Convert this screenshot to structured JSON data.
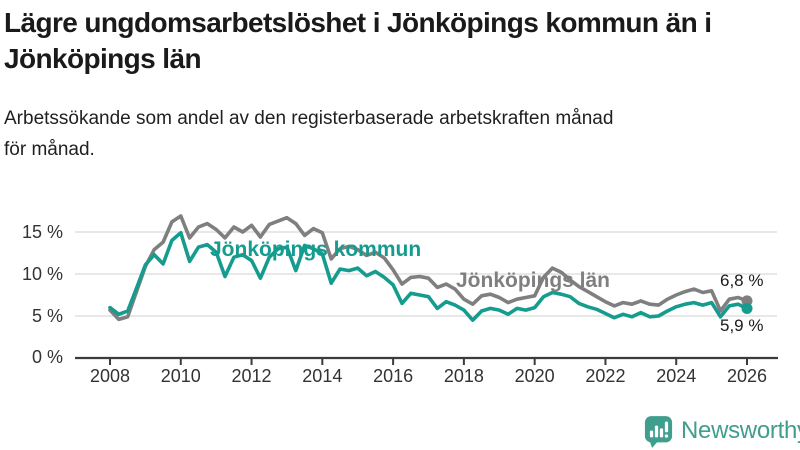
{
  "header": {
    "title_lines": [
      "Lägre ungdomsarbetslöshet i Jönköpings kommun än i",
      "Jönköpings län"
    ],
    "subtitle_lines": [
      "Arbetssökande som andel av den registerbaserade arbetskraften månad",
      "för månad."
    ]
  },
  "colors": {
    "kommun_teal": "#169c8f",
    "lan_gray": "#7f7f7f",
    "grid": "#d9d9d9",
    "axis": "#3c3c3c",
    "text": "#1a1a1a",
    "brand_teal": "#3f9e8d"
  },
  "chart_data": {
    "type": "line",
    "title": "Lägre ungdomsarbetslöshet i Jönköpings kommun än i Jönköpings län",
    "subtitle": "Arbetssökande som andel av den registerbaserade arbetskraften månad för månad.",
    "xlabel": "",
    "ylabel": "",
    "grid": "horizontal",
    "xlim": [
      2008,
      2026
    ],
    "ylim": [
      0,
      18
    ],
    "y_grid_values": [
      5,
      10,
      15
    ],
    "y_tick_labels": [
      "15 %",
      "10 %",
      "5 %",
      "0 %"
    ],
    "x_ticks": [
      2008,
      2010,
      2012,
      2014,
      2016,
      2018,
      2020,
      2022,
      2024,
      2026
    ],
    "x_tick_labels": [
      "2008",
      "2010",
      "2012",
      "2014",
      "2016",
      "2018",
      "2020",
      "2022",
      "2024",
      "2026"
    ],
    "x": [
      2008.0,
      2008.25,
      2008.5,
      2008.75,
      2009.0,
      2009.25,
      2009.5,
      2009.75,
      2010.0,
      2010.25,
      2010.5,
      2010.75,
      2011.0,
      2011.25,
      2011.5,
      2011.75,
      2012.0,
      2012.25,
      2012.5,
      2012.75,
      2013.0,
      2013.25,
      2013.5,
      2013.75,
      2014.0,
      2014.25,
      2014.5,
      2014.75,
      2015.0,
      2015.25,
      2015.5,
      2015.75,
      2016.0,
      2016.25,
      2016.5,
      2016.75,
      2017.0,
      2017.25,
      2017.5,
      2017.75,
      2018.0,
      2018.25,
      2018.5,
      2018.75,
      2019.0,
      2019.25,
      2019.5,
      2019.75,
      2020.0,
      2020.25,
      2020.5,
      2020.75,
      2021.0,
      2021.25,
      2021.5,
      2021.75,
      2022.0,
      2022.25,
      2022.5,
      2022.75,
      2023.0,
      2023.25,
      2023.5,
      2023.75,
      2024.0,
      2024.25,
      2024.5,
      2024.75,
      2025.0,
      2025.25,
      2025.5,
      2025.75,
      2026.0
    ],
    "series": [
      {
        "name": "Jönköpings län",
        "color": "#7f7f7f",
        "end_label": "6,8 %",
        "values": [
          5.7,
          4.6,
          4.9,
          7.9,
          10.9,
          12.9,
          13.8,
          16.2,
          16.9,
          14.3,
          15.6,
          16.0,
          15.3,
          14.3,
          15.6,
          15.0,
          15.8,
          14.4,
          15.9,
          16.3,
          16.7,
          16.0,
          14.6,
          15.4,
          14.9,
          11.8,
          13.0,
          13.3,
          12.9,
          12.2,
          12.6,
          11.9,
          10.5,
          8.8,
          9.6,
          9.7,
          9.5,
          8.4,
          8.8,
          8.2,
          7.0,
          6.4,
          7.4,
          7.6,
          7.2,
          6.6,
          7.0,
          7.2,
          7.4,
          9.6,
          10.7,
          10.2,
          9.3,
          8.5,
          7.9,
          7.3,
          6.7,
          6.2,
          6.6,
          6.4,
          6.8,
          6.4,
          6.3,
          7.0,
          7.5,
          7.9,
          8.2,
          7.8,
          8.0,
          5.6,
          7.0,
          7.2,
          6.8
        ]
      },
      {
        "name": "Jönköpings kommun",
        "color": "#169c8f",
        "end_label": "5,9 %",
        "values": [
          6.0,
          5.2,
          5.6,
          8.3,
          11.1,
          12.3,
          11.2,
          14.0,
          14.9,
          11.5,
          13.2,
          13.5,
          12.6,
          9.7,
          12.0,
          12.3,
          11.6,
          9.5,
          12.0,
          13.0,
          13.2,
          10.4,
          13.4,
          13.0,
          12.4,
          8.9,
          10.6,
          10.4,
          10.7,
          9.8,
          10.3,
          9.6,
          8.7,
          6.5,
          7.7,
          7.5,
          7.3,
          5.9,
          6.7,
          6.3,
          5.7,
          4.5,
          5.6,
          5.9,
          5.7,
          5.2,
          5.9,
          5.7,
          6.0,
          7.3,
          7.8,
          7.6,
          7.3,
          6.5,
          6.1,
          5.8,
          5.3,
          4.8,
          5.2,
          4.9,
          5.4,
          4.9,
          5.0,
          5.6,
          6.1,
          6.4,
          6.6,
          6.3,
          6.6,
          4.9,
          6.2,
          6.4,
          5.9
        ]
      }
    ],
    "legend_position": "inline-labels"
  },
  "branding": {
    "logo_text": "Newsworthy",
    "logo_icon": "newsworthy-chart-bubble-icon"
  }
}
